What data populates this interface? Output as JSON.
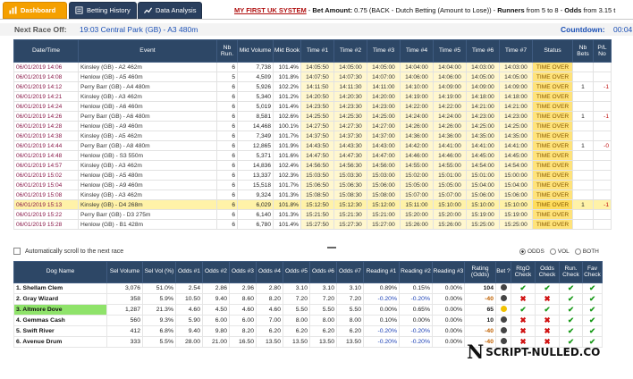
{
  "tabs": [
    {
      "label": "Dashboard",
      "icon": "dashboard-icon"
    },
    {
      "label": "Betting History",
      "icon": "history-icon"
    },
    {
      "label": "Data Analysis",
      "icon": "chart-icon"
    }
  ],
  "system_line": {
    "system": "MY FIRST UK SYSTEM",
    "sep1": " - ",
    "bet_label": "Bet Amount:",
    "bet_value": " 0.75 (BACK - Dutch Betting (Amount to Lose)) - ",
    "runners_label": "Runners",
    "runners_value": " from 5 to 8 - ",
    "odds_label": "Odds",
    "odds_value": " from 3.15 t"
  },
  "next_race": {
    "label": "Next Race Off:",
    "value": "19:03 Central Park (GB) - A3 480m",
    "countdown_label": "Countdown:",
    "countdown_value": "00:04"
  },
  "race_columns": [
    "Date/Time",
    "Event",
    "Nb Run.",
    "Mkt Volume",
    "Mkt Book",
    "Time #1",
    "Time #2",
    "Time #3",
    "Time #4",
    "Time #5",
    "Time #6",
    "Time #7",
    "Status",
    "Nb Bets",
    "P/L No"
  ],
  "races": [
    {
      "dt": "06/01/2019 14:06",
      "ev": "Kinsley (GB) - A2 462m",
      "nb": "6",
      "vol": "7,738",
      "book": "101.4%",
      "t": [
        "14:05:50",
        "14:05:00",
        "14:05:00",
        "14:04:00",
        "14:04:00",
        "14:03:00",
        "14:03:00"
      ],
      "st": "TIME OVER",
      "bets": "",
      "pl": "",
      "hl": false
    },
    {
      "dt": "06/01/2019 14:08",
      "ev": "Henlow (GB) - A5 460m",
      "nb": "5",
      "vol": "4,509",
      "book": "101.8%",
      "t": [
        "14:07:50",
        "14:07:30",
        "14:07:00",
        "14:06:00",
        "14:06:00",
        "14:05:00",
        "14:05:00"
      ],
      "st": "TIME OVER",
      "bets": "",
      "pl": "",
      "hl": false
    },
    {
      "dt": "06/01/2019 14:12",
      "ev": "Perry Barr (GB) - A4 480m",
      "nb": "6",
      "vol": "5,926",
      "book": "102.2%",
      "t": [
        "14:11:50",
        "14:11:30",
        "14:11:00",
        "14:10:00",
        "14:09:00",
        "14:09:00",
        "14:09:00"
      ],
      "st": "TIME OVER",
      "bets": "1",
      "pl": "-1",
      "hl": false
    },
    {
      "dt": "06/01/2019 14:21",
      "ev": "Kinsley (GB) - A3 462m",
      "nb": "6",
      "vol": "5,340",
      "book": "101.2%",
      "t": [
        "14:20:50",
        "14:20:30",
        "14:20:00",
        "14:19:00",
        "14:19:00",
        "14:18:00",
        "14:18:00"
      ],
      "st": "TIME OVER",
      "bets": "",
      "pl": "",
      "hl": false
    },
    {
      "dt": "06/01/2019 14:24",
      "ev": "Henlow (GB) - A6 460m",
      "nb": "6",
      "vol": "5,019",
      "book": "101.4%",
      "t": [
        "14:23:50",
        "14:23:30",
        "14:23:00",
        "14:22:00",
        "14:22:00",
        "14:21:00",
        "14:21:00"
      ],
      "st": "TIME OVER",
      "bets": "",
      "pl": "",
      "hl": false
    },
    {
      "dt": "06/01/2019 14:26",
      "ev": "Perry Barr (GB) - A6 480m",
      "nb": "6",
      "vol": "8,581",
      "book": "102.6%",
      "t": [
        "14:25:50",
        "14:25:30",
        "14:25:00",
        "14:24:00",
        "14:24:00",
        "14:23:00",
        "14:23:00"
      ],
      "st": "TIME OVER",
      "bets": "1",
      "pl": "-1",
      "hl": false
    },
    {
      "dt": "06/01/2019 14:28",
      "ev": "Henlow (GB) - A9 460m",
      "nb": "6",
      "vol": "14,468",
      "book": "100.1%",
      "t": [
        "14:27:50",
        "14:27:30",
        "14:27:00",
        "14:26:00",
        "14:26:00",
        "14:25:00",
        "14:25:00"
      ],
      "st": "TIME OVER",
      "bets": "",
      "pl": "",
      "hl": false
    },
    {
      "dt": "06/01/2019 14:38",
      "ev": "Kinsley (GB) - A5 462m",
      "nb": "6",
      "vol": "7,349",
      "book": "101.7%",
      "t": [
        "14:37:50",
        "14:37:30",
        "14:37:00",
        "14:36:00",
        "14:36:00",
        "14:35:00",
        "14:35:00"
      ],
      "st": "TIME OVER",
      "bets": "",
      "pl": "",
      "hl": false
    },
    {
      "dt": "06/01/2019 14:44",
      "ev": "Perry Barr (GB) - A8 480m",
      "nb": "6",
      "vol": "12,865",
      "book": "101.9%",
      "t": [
        "14:43:50",
        "14:43:30",
        "14:43:00",
        "14:42:00",
        "14:41:00",
        "14:41:00",
        "14:41:00"
      ],
      "st": "TIME OVER",
      "bets": "1",
      "pl": "-0",
      "hl": false
    },
    {
      "dt": "06/01/2019 14:48",
      "ev": "Henlow (GB) - S3 550m",
      "nb": "6",
      "vol": "5,371",
      "book": "101.6%",
      "t": [
        "14:47:50",
        "14:47:30",
        "14:47:00",
        "14:46:00",
        "14:46:00",
        "14:45:00",
        "14:45:00"
      ],
      "st": "TIME OVER",
      "bets": "",
      "pl": "",
      "hl": false
    },
    {
      "dt": "06/01/2019 14:57",
      "ev": "Kinsley (GB) - A3 462m",
      "nb": "6",
      "vol": "14,836",
      "book": "102.4%",
      "t": [
        "14:56:50",
        "14:56:30",
        "14:56:00",
        "14:55:00",
        "14:55:00",
        "14:54:00",
        "14:54:00"
      ],
      "st": "TIME OVER",
      "bets": "",
      "pl": "",
      "hl": false
    },
    {
      "dt": "06/01/2019 15:02",
      "ev": "Henlow (GB) - A5 480m",
      "nb": "6",
      "vol": "13,337",
      "book": "102.3%",
      "t": [
        "15:03:50",
        "15:03:30",
        "15:03:00",
        "15:02:00",
        "15:01:00",
        "15:01:00",
        "15:00:00"
      ],
      "st": "TIME OVER",
      "bets": "",
      "pl": "",
      "hl": false
    },
    {
      "dt": "06/01/2019 15:04",
      "ev": "Henlow (GB) - A9 460m",
      "nb": "6",
      "vol": "15,518",
      "book": "101.7%",
      "t": [
        "15:06:50",
        "15:06:30",
        "15:06:00",
        "15:05:00",
        "15:05:00",
        "15:04:00",
        "15:04:00"
      ],
      "st": "TIME OVER",
      "bets": "",
      "pl": "",
      "hl": false
    },
    {
      "dt": "06/01/2019 15:08",
      "ev": "Kinsley (GB) - A3 462m",
      "nb": "6",
      "vol": "9,324",
      "book": "101.3%",
      "t": [
        "15:08:50",
        "15:08:30",
        "15:08:00",
        "15:07:00",
        "15:07:00",
        "15:06:00",
        "15:06:00"
      ],
      "st": "TIME OVER",
      "bets": "",
      "pl": "",
      "hl": false
    },
    {
      "dt": "06/01/2019 15:13",
      "ev": "Kinsley (GB) - D4 268m",
      "nb": "6",
      "vol": "6,029",
      "book": "101.8%",
      "t": [
        "15:12:50",
        "15:12:30",
        "15:12:00",
        "15:11:00",
        "15:10:00",
        "15:10:00",
        "15:10:00"
      ],
      "st": "TIME OVER",
      "bets": "1",
      "pl": "-1",
      "hl": true
    },
    {
      "dt": "06/01/2019 15:22",
      "ev": "Perry Barr (GB) - D3 275m",
      "nb": "6",
      "vol": "6,140",
      "book": "101.3%",
      "t": [
        "15:21:50",
        "15:21:30",
        "15:21:00",
        "15:20:00",
        "15:20:00",
        "15:19:00",
        "15:19:00"
      ],
      "st": "TIME OVER",
      "bets": "",
      "pl": "",
      "hl": false
    },
    {
      "dt": "06/01/2019 15:28",
      "ev": "Henlow (GB) - B1 428m",
      "nb": "6",
      "vol": "6,780",
      "book": "101.4%",
      "t": [
        "15:27:50",
        "15:27:30",
        "15:27:00",
        "15:26:00",
        "15:26:00",
        "15:25:00",
        "15:25:00"
      ],
      "st": "TIME OVER",
      "bets": "",
      "pl": "",
      "hl": false
    }
  ],
  "autoscroll": {
    "label": "Automatically scroll to the next race"
  },
  "radios": [
    {
      "label": "ODDS",
      "on": true
    },
    {
      "label": "VOL",
      "on": false
    },
    {
      "label": "BOTH",
      "on": false
    }
  ],
  "dog_columns": [
    "Dog Name",
    "Sel Volume",
    "Sel Vol (%)",
    "Odds #1",
    "Odds #2",
    "Odds #3",
    "Odds #4",
    "Odds #5",
    "Odds #6",
    "Odds #7",
    "Reading #1",
    "Reading #2",
    "Reading #3",
    "Rating (Odds)",
    "Bet ?",
    "RtgO Check",
    "Odds Check",
    "Run. Check",
    "Fav Check"
  ],
  "dogs": [
    {
      "name": "1. Shellam Clem",
      "vol": "3,076",
      "pct": "51.0%",
      "odds": [
        "2.54",
        "2.86",
        "2.96",
        "2.80",
        "3.10",
        "3.10",
        "3.10"
      ],
      "r1": "0.89%",
      "r2": "0.15%",
      "r3": "0.00%",
      "rating": "104",
      "rneg": false,
      "bet": "dark",
      "c1": "v",
      "c2": "v",
      "c3": "v",
      "c4": "v",
      "sel": false
    },
    {
      "name": "2. Gray Wizard",
      "vol": "358",
      "pct": "5.9%",
      "odds": [
        "10.50",
        "9.40",
        "8.60",
        "8.20",
        "7.20",
        "7.20",
        "7.20"
      ],
      "r1": "-0.20%",
      "r2": "-0.20%",
      "r3": "0.00%",
      "rating": "-40",
      "rneg": true,
      "bet": "dark",
      "c1": "x",
      "c2": "x",
      "c3": "v",
      "c4": "v",
      "sel": false
    },
    {
      "name": "3. Altmore Dove",
      "vol": "1,287",
      "pct": "21.3%",
      "odds": [
        "4.60",
        "4.50",
        "4.60",
        "4.60",
        "5.50",
        "5.50",
        "5.50"
      ],
      "r1": "0.00%",
      "r2": "0.65%",
      "r3": "0.00%",
      "rating": "65",
      "rneg": false,
      "bet": "yellow",
      "c1": "v",
      "c2": "v",
      "c3": "v",
      "c4": "v",
      "sel": true
    },
    {
      "name": "4. Gemmas Cash",
      "vol": "560",
      "pct": "9.3%",
      "odds": [
        "5.90",
        "6.00",
        "6.00",
        "7.00",
        "8.00",
        "8.00",
        "8.00"
      ],
      "r1": "0.10%",
      "r2": "0.00%",
      "r3": "0.00%",
      "rating": "10",
      "rneg": false,
      "bet": "dark",
      "c1": "x",
      "c2": "x",
      "c3": "v",
      "c4": "v",
      "sel": false
    },
    {
      "name": "5. Swift River",
      "vol": "412",
      "pct": "6.8%",
      "odds": [
        "9.40",
        "9.80",
        "8.20",
        "6.20",
        "6.20",
        "6.20",
        "6.20"
      ],
      "r1": "-0.20%",
      "r2": "-0.20%",
      "r3": "0.00%",
      "rating": "-40",
      "rneg": true,
      "bet": "dark",
      "c1": "x",
      "c2": "x",
      "c3": "v",
      "c4": "v",
      "sel": false
    },
    {
      "name": "6. Avenue Drum",
      "vol": "333",
      "pct": "5.5%",
      "odds": [
        "28.00",
        "21.00",
        "16.50",
        "13.50",
        "13.50",
        "13.50",
        "13.50"
      ],
      "r1": "-0.20%",
      "r2": "-0.20%",
      "r3": "0.00%",
      "rating": "-40",
      "rneg": true,
      "bet": "dark",
      "c1": "x",
      "c2": "x",
      "c3": "v",
      "c4": "v",
      "sel": false
    }
  ],
  "watermark": {
    "letter": "N",
    "text": "SCRIPT-NULLED.CO"
  }
}
